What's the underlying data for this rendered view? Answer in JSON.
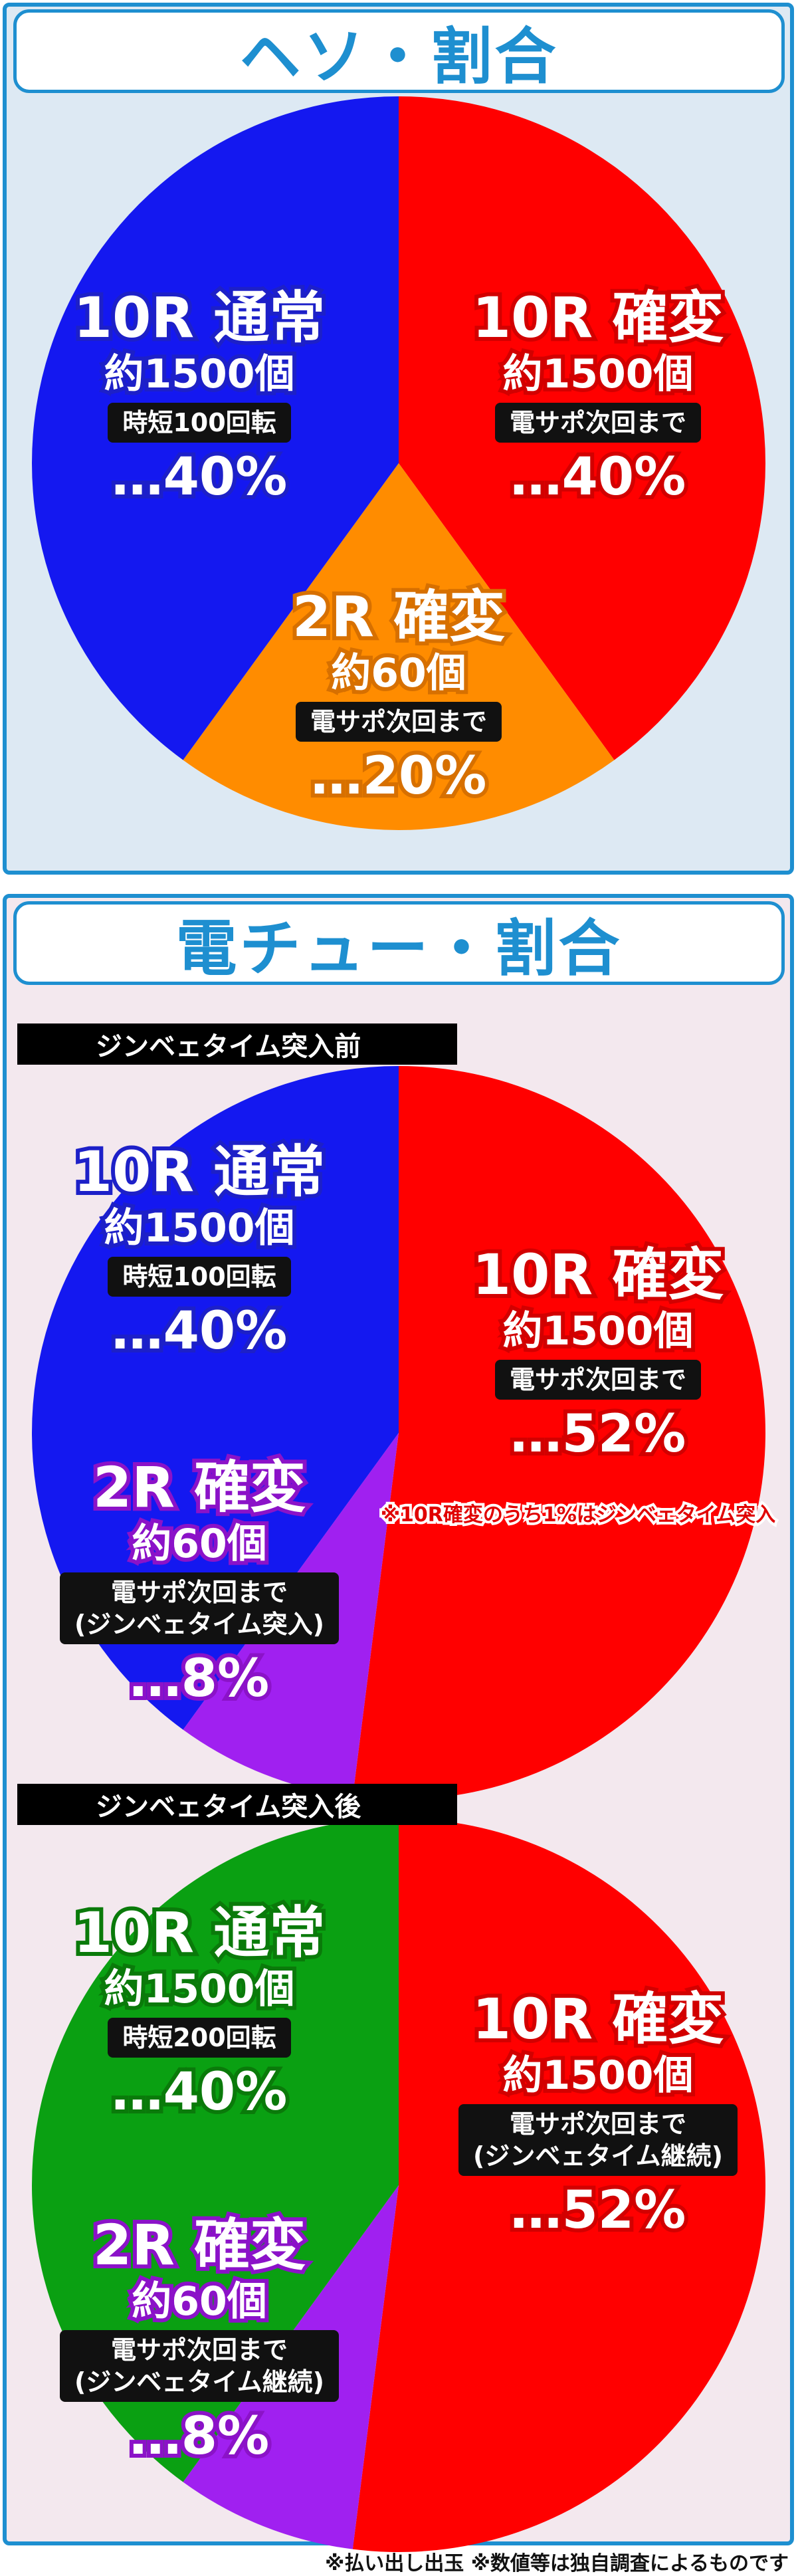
{
  "hesoTitle": "ヘソ・割合",
  "denchuTitle": "電チュー・割合",
  "denchuBar1": "ジンベェタイム突入前",
  "denchuBar2": "ジンベェタイム突入後",
  "note": "※10R確変のうち1%はジンベェタイム突入",
  "footer": "※払い出し出玉 ※数値等は独自調査によるものです",
  "colors": {
    "blue": "#1418f0",
    "red": "#ff0000",
    "orange": "#ff8c00",
    "purple": "#a020f0",
    "green": "#0aa012",
    "panelBorder": "#1e8fd0"
  },
  "chart_data": [
    {
      "type": "pie",
      "title": "ヘソ・割合",
      "slices": [
        {
          "label": "10R 通常",
          "sub": "約1500個",
          "detail": [
            "時短100回転"
          ],
          "percent_text": "…40%",
          "value": 40,
          "color": "#1418f0"
        },
        {
          "label": "10R 確変",
          "sub": "約1500個",
          "detail": [
            "電サポ次回まで"
          ],
          "percent_text": "…40%",
          "value": 40,
          "color": "#ff0000"
        },
        {
          "label": "2R 確変",
          "sub": "約60個",
          "detail": [
            "電サポ次回まで"
          ],
          "percent_text": "…20%",
          "value": 20,
          "color": "#ff8c00"
        }
      ]
    },
    {
      "type": "pie",
      "title": "ジンベェタイム突入前",
      "slices": [
        {
          "label": "10R 通常",
          "sub": "約1500個",
          "detail": [
            "時短100回転"
          ],
          "percent_text": "…40%",
          "value": 40,
          "color": "#1418f0"
        },
        {
          "label": "10R 確変",
          "sub": "約1500個",
          "detail": [
            "電サポ次回まで"
          ],
          "percent_text": "…52%",
          "value": 52,
          "color": "#ff0000"
        },
        {
          "label": "2R 確変",
          "sub": "約60個",
          "detail": [
            "電サポ次回まで",
            "(ジンベェタイム突入)"
          ],
          "percent_text": "…8%",
          "value": 8,
          "color": "#a020f0"
        }
      ]
    },
    {
      "type": "pie",
      "title": "ジンベェタイム突入後",
      "slices": [
        {
          "label": "10R 通常",
          "sub": "約1500個",
          "detail": [
            "時短200回転"
          ],
          "percent_text": "…40%",
          "value": 40,
          "color": "#0aa012"
        },
        {
          "label": "10R 確変",
          "sub": "約1500個",
          "detail": [
            "電サポ次回まで",
            "(ジンベェタイム継続)"
          ],
          "percent_text": "…52%",
          "value": 52,
          "color": "#ff0000"
        },
        {
          "label": "2R 確変",
          "sub": "約60個",
          "detail": [
            "電サポ次回まで",
            "(ジンベェタイム継続)"
          ],
          "percent_text": "…8%",
          "value": 8,
          "color": "#a020f0"
        }
      ]
    }
  ]
}
